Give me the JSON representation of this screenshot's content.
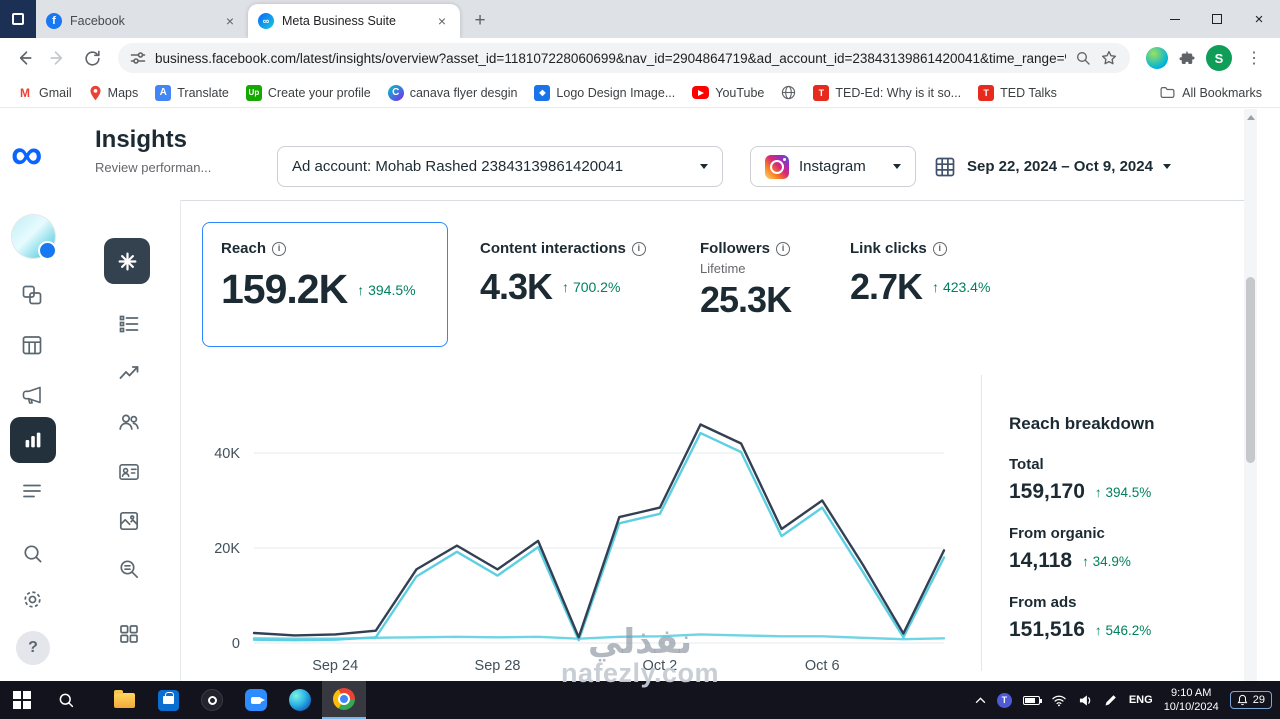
{
  "browser": {
    "tabs": [
      {
        "title": "Facebook"
      },
      {
        "title": "Meta Business Suite"
      }
    ],
    "url": "business.facebook.com/latest/insights/overview?asset_id=118107228060699&nav_id=2904864719&ad_account_id=23843139861420041&time_range=%...",
    "profile_initial": "S",
    "bookmarks": [
      "Gmail",
      "Maps",
      "Translate",
      "Create your profile",
      "canava flyer desgin",
      "Logo Design Image...",
      "YouTube",
      "TED-Ed: Why is it so...",
      "TED Talks"
    ],
    "all_bookmarks_label": "All Bookmarks"
  },
  "app": {
    "title": "Insights",
    "subtitle": "Review performan...",
    "ad_account_label": "Ad account: Mohab Rashed 23843139861420041",
    "platform": "Instagram",
    "date_range": "Sep 22, 2024 – Oct 9, 2024"
  },
  "metrics": [
    {
      "label": "Reach",
      "value": "159.2K",
      "delta": "394.5%"
    },
    {
      "label": "Content interactions",
      "value": "4.3K",
      "delta": "700.2%"
    },
    {
      "label": "Followers",
      "sublabel": "Lifetime",
      "value": "25.3K"
    },
    {
      "label": "Link clicks",
      "value": "2.7K",
      "delta": "423.4%"
    }
  ],
  "breakdown": {
    "title": "Reach breakdown",
    "items": [
      {
        "label": "Total",
        "value": "159,170",
        "delta": "394.5%"
      },
      {
        "label": "From organic",
        "value": "14,118",
        "delta": "34.9%"
      },
      {
        "label": "From ads",
        "value": "151,516",
        "delta": "546.2%"
      }
    ]
  },
  "chart_data": {
    "type": "line",
    "x": [
      "Sep 22",
      "Sep 23",
      "Sep 24",
      "Sep 25",
      "Sep 26",
      "Sep 27",
      "Sep 28",
      "Sep 29",
      "Sep 30",
      "Oct 1",
      "Oct 2",
      "Oct 3",
      "Oct 4",
      "Oct 5",
      "Oct 6",
      "Oct 7",
      "Oct 8",
      "Oct 9"
    ],
    "series": [
      {
        "name": "From organic",
        "color": "#6fd4e4",
        "values": [
          1000,
          900,
          900,
          1100,
          1200,
          1300,
          1200,
          1300,
          900,
          1300,
          1400,
          1800,
          1600,
          1400,
          1400,
          1100,
          800,
          1000
        ]
      },
      {
        "name": "From ads",
        "color": "#5ccfe2",
        "values": [
          700,
          600,
          700,
          1200,
          14000,
          19200,
          14200,
          20200,
          600,
          25200,
          27200,
          44200,
          40200,
          22500,
          28500,
          15000,
          1200,
          18000
        ]
      },
      {
        "name": "Total",
        "color": "#333f52",
        "values": [
          2100,
          1600,
          1800,
          2600,
          15500,
          20500,
          15500,
          21500,
          1200,
          26500,
          28500,
          46000,
          42000,
          24000,
          30000,
          16500,
          2000,
          19500
        ]
      }
    ],
    "ylim": [
      0,
      50000
    ],
    "yticks": [
      {
        "v": 0,
        "label": "0"
      },
      {
        "v": 20000,
        "label": "20K"
      },
      {
        "v": 40000,
        "label": "40K"
      }
    ],
    "xticks": [
      {
        "i": 2,
        "label": "Sep 24"
      },
      {
        "i": 6,
        "label": "Sep 28"
      },
      {
        "i": 10,
        "label": "Oct 2"
      },
      {
        "i": 14,
        "label": "Oct 6"
      }
    ],
    "grid": "horizontal",
    "legend": "none"
  },
  "icons": {
    "infinity": "∞",
    "plus": "+",
    "close": "×",
    "kebab": "⋮",
    "question": "?"
  },
  "colors": {
    "accent_blue": "#2d88ff",
    "positive_green": "#00805d",
    "line_total": "#333f52",
    "line_secondary": "#5ccfe2",
    "taskbar_bg": "#13131d"
  },
  "watermark": {
    "arabic": "نفذلي",
    "latin": "nafezly.com"
  },
  "taskbar": {
    "language": "ENG",
    "time": "9:10 AM",
    "date": "10/10/2024",
    "notification_count": "29"
  }
}
